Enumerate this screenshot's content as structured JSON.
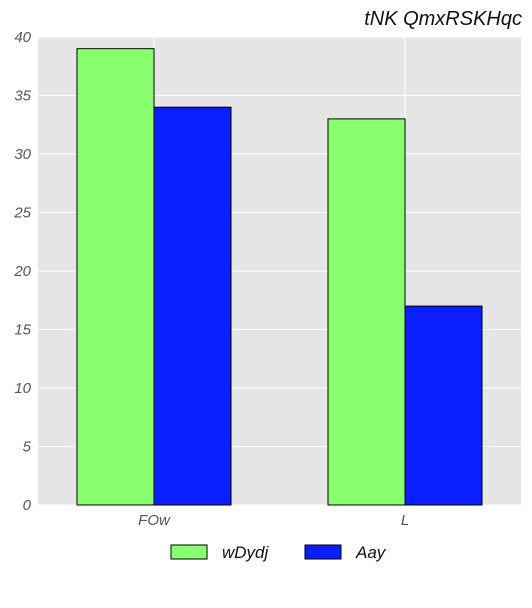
{
  "chart_data": {
    "type": "bar",
    "title": "tNK QmxRSKHqc",
    "xlabel": "",
    "ylabel": "",
    "categories": [
      "FOw",
      "L"
    ],
    "series": [
      {
        "name": "wDydj",
        "values": [
          39,
          33
        ],
        "color": "#88FF6E"
      },
      {
        "name": "Aay",
        "values": [
          34,
          17
        ],
        "color": "#0A1EFF"
      }
    ],
    "ylim": [
      0,
      40
    ],
    "yticks": [
      0,
      5,
      10,
      15,
      20,
      25,
      30,
      35,
      40
    ],
    "grid": true,
    "legend": "bottom",
    "background": "#E5E5E5"
  }
}
